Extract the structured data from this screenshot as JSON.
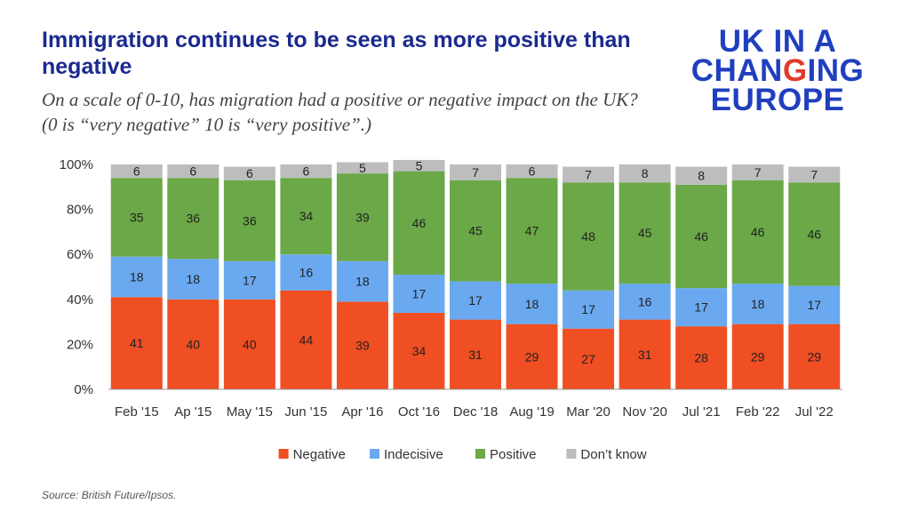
{
  "header": {
    "title": "Immigration continues to be seen as more positive than negative",
    "subtitle_line1": "On a scale of 0-10, has migration had a positive or negative impact on the UK?",
    "subtitle_line2": "(0 is “very negative” 10 is “very positive”.)"
  },
  "logo": {
    "line1": "UK IN A",
    "line2_a": "CHAN",
    "line2_b": "G",
    "line2_c": "ING",
    "line3": "EUROPE",
    "colors": {
      "primary": "#1f3fbf",
      "accent": "#e23b2a"
    }
  },
  "source": "Source: British Future/Ipsos.",
  "chart_data": {
    "type": "bar",
    "stacked": true,
    "categories": [
      "Feb '15",
      "Ap '15",
      "May '15",
      "Jun '15",
      "Apr '16",
      "Oct '16",
      "Dec '18",
      "Aug '19",
      "Mar '20",
      "Nov '20",
      "Jul '21",
      "Feb '22",
      "Jul '22"
    ],
    "series": [
      {
        "name": "Negative",
        "color": "#f04e23",
        "values": [
          41,
          40,
          40,
          44,
          39,
          34,
          31,
          29,
          27,
          31,
          28,
          29,
          29
        ]
      },
      {
        "name": "Indecisive",
        "color": "#6aa9f0",
        "values": [
          18,
          18,
          17,
          16,
          18,
          17,
          17,
          18,
          17,
          16,
          17,
          18,
          17
        ]
      },
      {
        "name": "Positive",
        "color": "#6ba847",
        "values": [
          35,
          36,
          36,
          34,
          39,
          46,
          45,
          47,
          48,
          45,
          46,
          46,
          46
        ]
      },
      {
        "name": "Don’t know",
        "color": "#bdbdbd",
        "values": [
          6,
          6,
          6,
          6,
          5,
          5,
          7,
          6,
          7,
          8,
          8,
          7,
          7
        ]
      }
    ],
    "ylim": [
      0,
      100
    ],
    "yticks": [
      "0%",
      "20%",
      "40%",
      "60%",
      "80%",
      "100%"
    ],
    "legend_position": "bottom"
  }
}
